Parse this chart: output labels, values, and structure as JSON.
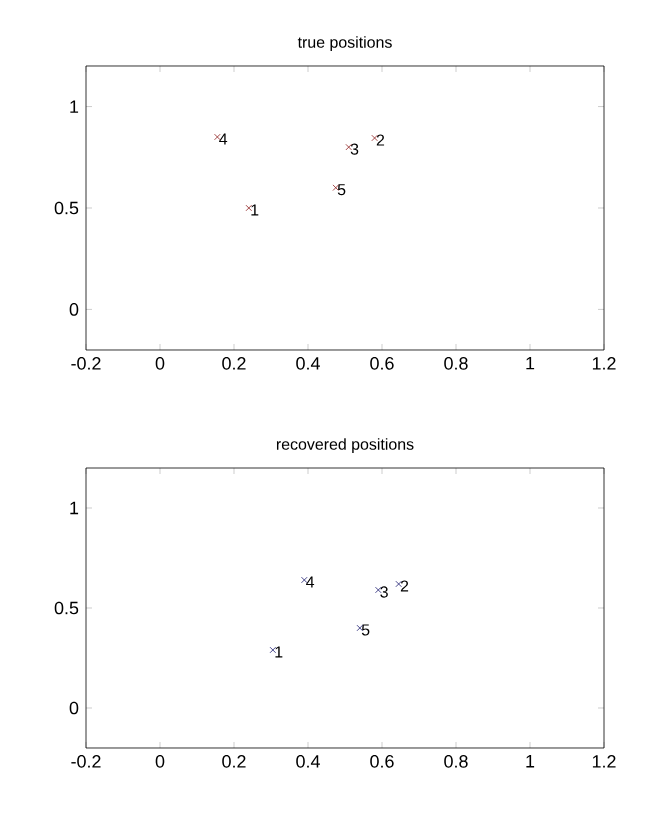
{
  "chart_data": [
    {
      "type": "scatter",
      "title": "true positions",
      "x": [
        0.24,
        0.58,
        0.51,
        0.155,
        0.475
      ],
      "values": [
        0.5,
        0.845,
        0.8,
        0.85,
        0.6
      ],
      "color": "#8b1a1a",
      "marker": "cross",
      "xlim": [
        -0.2,
        1.2
      ],
      "ylim": [
        -0.2,
        1.2
      ],
      "xticks": [
        -0.2,
        0,
        0.2,
        0.4,
        0.6,
        0.8,
        1,
        1.2
      ],
      "yticks": [
        0,
        0.5,
        1
      ],
      "annotations": [
        {
          "text": "1",
          "x": 0.24,
          "y": 0.5
        },
        {
          "text": "2",
          "x": 0.58,
          "y": 0.845
        },
        {
          "text": "3",
          "x": 0.51,
          "y": 0.8
        },
        {
          "text": "4",
          "x": 0.155,
          "y": 0.85
        },
        {
          "text": "5",
          "x": 0.475,
          "y": 0.6
        }
      ]
    },
    {
      "type": "scatter",
      "title": "recovered positions",
      "x": [
        0.305,
        0.645,
        0.59,
        0.39,
        0.54
      ],
      "values": [
        0.29,
        0.62,
        0.59,
        0.64,
        0.4
      ],
      "color": "#1a1a6e",
      "marker": "cross",
      "xlim": [
        -0.2,
        1.2
      ],
      "ylim": [
        -0.2,
        1.2
      ],
      "xticks": [
        -0.2,
        0,
        0.2,
        0.4,
        0.6,
        0.8,
        1,
        1.2
      ],
      "yticks": [
        0,
        0.5,
        1
      ],
      "annotations": [
        {
          "text": "1",
          "x": 0.305,
          "y": 0.29
        },
        {
          "text": "2",
          "x": 0.645,
          "y": 0.62
        },
        {
          "text": "3",
          "x": 0.59,
          "y": 0.59
        },
        {
          "text": "4",
          "x": 0.39,
          "y": 0.64
        },
        {
          "text": "5",
          "x": 0.54,
          "y": 0.4
        }
      ]
    }
  ]
}
